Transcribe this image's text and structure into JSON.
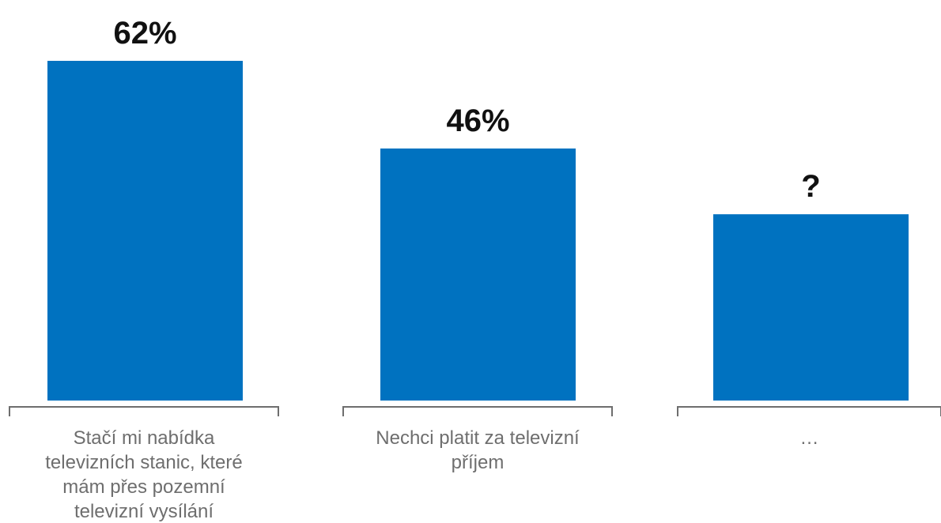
{
  "chart_data": {
    "type": "bar",
    "categories": [
      "Stačí mi nabídka televizních stanic, které mám přes pozemní televizní vysílání",
      "Nechci platit za televizní příjem",
      "…"
    ],
    "category_lines": [
      [
        "Stačí mi nabídka",
        "televizních stanic, které",
        "mám přes pozemní",
        "televizní vysílání"
      ],
      [
        "Nechci platit za televizní",
        "příjem"
      ],
      [
        "…"
      ]
    ],
    "values": [
      62,
      46,
      34
    ],
    "data_labels": [
      "62%",
      "46%",
      "?"
    ],
    "unit": "%",
    "ylim": [
      0,
      62
    ],
    "grid": false,
    "legend": "none"
  },
  "colors": {
    "bar": "#0072C0",
    "data_label": "#111111",
    "category_text": "#6E6E6E",
    "bracket": "#6E6E6E"
  }
}
